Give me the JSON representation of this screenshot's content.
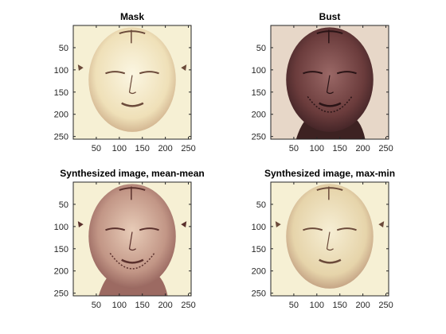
{
  "figure": {
    "panels": [
      {
        "id": "mask",
        "title": "Mask",
        "kind": "mask-face"
      },
      {
        "id": "bust",
        "title": "Bust",
        "kind": "bust-face"
      },
      {
        "id": "mean-mean",
        "title": "Synthesized image, mean-mean",
        "kind": "blend-bust"
      },
      {
        "id": "max-min",
        "title": "Synthesized image, max-min",
        "kind": "blend-mask"
      }
    ],
    "xticks": [
      "50",
      "100",
      "150",
      "200",
      "250"
    ],
    "yticks": [
      "50",
      "100",
      "150",
      "200",
      "250"
    ],
    "image_size": 256,
    "colors": {
      "mask_skin": "#f4e9c8",
      "mask_bg": "#f6f0d4",
      "bust_skin": "#7a4a48",
      "bust_dark": "#3d2222",
      "blend_skin": "#c89a8c",
      "axis": "#262626"
    }
  }
}
